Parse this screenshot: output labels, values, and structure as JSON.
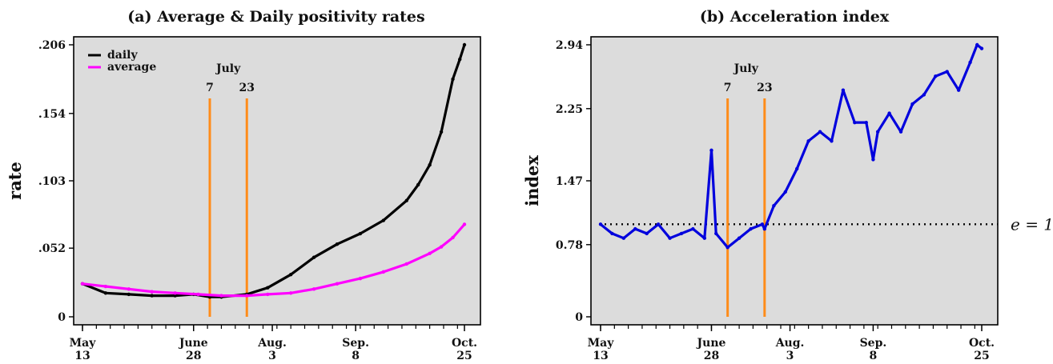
{
  "chart_data": [
    {
      "type": "line",
      "title": "(a) Average & Daily positivity rates",
      "xlabel": "",
      "ylabel": "rate",
      "ylim": [
        0,
        0.206
      ],
      "y_ticks": [
        ".206",
        ".154",
        ".103",
        ".052",
        "0"
      ],
      "y_tick_values": [
        0.206,
        0.154,
        0.103,
        0.052,
        0
      ],
      "x_days_range": [
        0,
        165
      ],
      "x_ticks": [
        {
          "day": 0,
          "l1": "May",
          "l2": "13"
        },
        {
          "day": 48,
          "l1": "June",
          "l2": "28"
        },
        {
          "day": 82,
          "l1": "Aug.",
          "l2": "3"
        },
        {
          "day": 118,
          "l1": "Sep.",
          "l2": "8"
        },
        {
          "day": 165,
          "l1": "Oct.",
          "l2": "25"
        }
      ],
      "legend": [
        "daily",
        "average"
      ],
      "legend_position": "top-left",
      "grid": false,
      "vlines": [
        {
          "day": 55,
          "label": "7"
        },
        {
          "day": 71,
          "label": "23"
        }
      ],
      "vline_month_label": "July",
      "series": [
        {
          "name": "daily",
          "color": "#000000",
          "x": [
            0,
            10,
            20,
            30,
            40,
            48,
            55,
            60,
            71,
            80,
            90,
            100,
            110,
            120,
            130,
            140,
            145,
            150,
            155,
            160,
            163,
            165
          ],
          "y": [
            0.025,
            0.018,
            0.017,
            0.016,
            0.016,
            0.017,
            0.015,
            0.015,
            0.017,
            0.022,
            0.032,
            0.045,
            0.055,
            0.063,
            0.073,
            0.088,
            0.1,
            0.115,
            0.14,
            0.18,
            0.195,
            0.206
          ]
        },
        {
          "name": "average",
          "color": "#ff00ff",
          "x": [
            0,
            10,
            20,
            30,
            40,
            50,
            60,
            71,
            80,
            90,
            100,
            110,
            120,
            130,
            140,
            150,
            155,
            160,
            165
          ],
          "y": [
            0.025,
            0.023,
            0.021,
            0.019,
            0.018,
            0.017,
            0.016,
            0.016,
            0.017,
            0.018,
            0.021,
            0.025,
            0.029,
            0.034,
            0.04,
            0.048,
            0.053,
            0.06,
            0.07
          ]
        }
      ]
    },
    {
      "type": "line",
      "title": "(b) Acceleration index",
      "xlabel": "",
      "ylabel": "index",
      "ylim": [
        0,
        2.94
      ],
      "y_ticks": [
        "2.94",
        "2.25",
        "1.47",
        "0.78",
        "0"
      ],
      "y_tick_values": [
        2.94,
        2.25,
        1.47,
        0.78,
        0
      ],
      "x_days_range": [
        0,
        165
      ],
      "x_ticks": [
        {
          "day": 0,
          "l1": "May",
          "l2": "13"
        },
        {
          "day": 48,
          "l1": "June",
          "l2": "28"
        },
        {
          "day": 82,
          "l1": "Aug.",
          "l2": "3"
        },
        {
          "day": 118,
          "l1": "Sep.",
          "l2": "8"
        },
        {
          "day": 165,
          "l1": "Oct.",
          "l2": "25"
        }
      ],
      "grid": false,
      "vlines": [
        {
          "day": 55,
          "label": "7"
        },
        {
          "day": 71,
          "label": "23"
        }
      ],
      "vline_month_label": "July",
      "hline": {
        "y": 1.0,
        "label": "e = 1"
      },
      "series": [
        {
          "name": "",
          "color": "#0000dd",
          "x": [
            0,
            5,
            10,
            15,
            20,
            25,
            30,
            35,
            40,
            45,
            48,
            50,
            55,
            60,
            65,
            70,
            71,
            75,
            80,
            85,
            90,
            95,
            100,
            105,
            110,
            115,
            118,
            120,
            125,
            130,
            135,
            140,
            145,
            150,
            155,
            160,
            163,
            165
          ],
          "y": [
            1.0,
            0.9,
            0.85,
            0.95,
            0.9,
            1.0,
            0.85,
            0.9,
            0.95,
            0.85,
            1.8,
            0.9,
            0.75,
            0.85,
            0.95,
            1.0,
            0.95,
            1.2,
            1.35,
            1.6,
            1.9,
            2.0,
            1.9,
            2.45,
            2.1,
            2.1,
            1.7,
            2.0,
            2.2,
            2.0,
            2.3,
            2.4,
            2.6,
            2.65,
            2.45,
            2.75,
            2.94,
            2.9
          ]
        }
      ]
    }
  ]
}
